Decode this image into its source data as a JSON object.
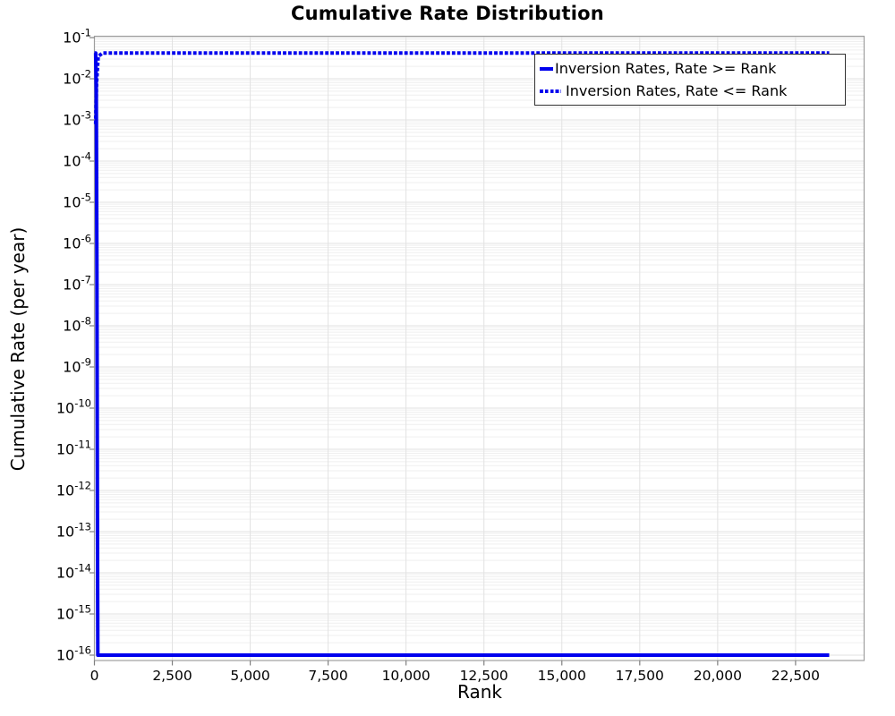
{
  "chart_data": {
    "type": "line",
    "title": "Cumulative Rate Distribution",
    "xlabel": "Rank",
    "ylabel": "Cumulative Rate (per year)",
    "x_scale": "linear",
    "y_scale": "log",
    "xlim": [
      0,
      24700
    ],
    "ylim": [
      1e-16,
      0.1
    ],
    "x_ticks": {
      "values": [
        0,
        2500,
        5000,
        7500,
        10000,
        12500,
        15000,
        17500,
        20000,
        22500
      ],
      "labels": [
        "0",
        "2,500",
        "5,000",
        "7,500",
        "10,000",
        "12,500",
        "15,000",
        "17,500",
        "20,000",
        "22,500"
      ]
    },
    "y_ticks": {
      "exponents": [
        -1,
        -2,
        -3,
        -4,
        -5,
        -6,
        -7,
        -8,
        -9,
        -10,
        -11,
        -12,
        -13,
        -14,
        -15,
        -16
      ],
      "label_base": "10"
    },
    "grid": {
      "vertical": "major",
      "horizontal": "major+minor"
    },
    "legend_position": "top-right",
    "series": [
      {
        "name": "Inversion Rates, Rate >= Rank",
        "style": "solid",
        "color": "#0000EE",
        "points": [
          [
            0,
            0.042
          ],
          [
            40,
            0.042
          ],
          [
            60,
            0.004
          ],
          [
            80,
            2e-07
          ],
          [
            95,
            1e-12
          ],
          [
            110,
            1e-16
          ],
          [
            23580,
            1e-16
          ]
        ]
      },
      {
        "name": "Inversion Rates, Rate <= Rank",
        "style": "dotted",
        "color": "#0000EE",
        "points": [
          [
            40,
            0.0008
          ],
          [
            70,
            0.008
          ],
          [
            120,
            0.035
          ],
          [
            260,
            0.042
          ],
          [
            23580,
            0.042
          ]
        ]
      }
    ]
  },
  "colors": {
    "line": "#0000EE",
    "grid_major": "#E2E2E2",
    "grid_minor": "#EFEFEF",
    "frame": "#9E9E9E",
    "tick": "#808080",
    "text": "#000000",
    "legend_border": "#333333",
    "background": "#FFFFFF"
  }
}
